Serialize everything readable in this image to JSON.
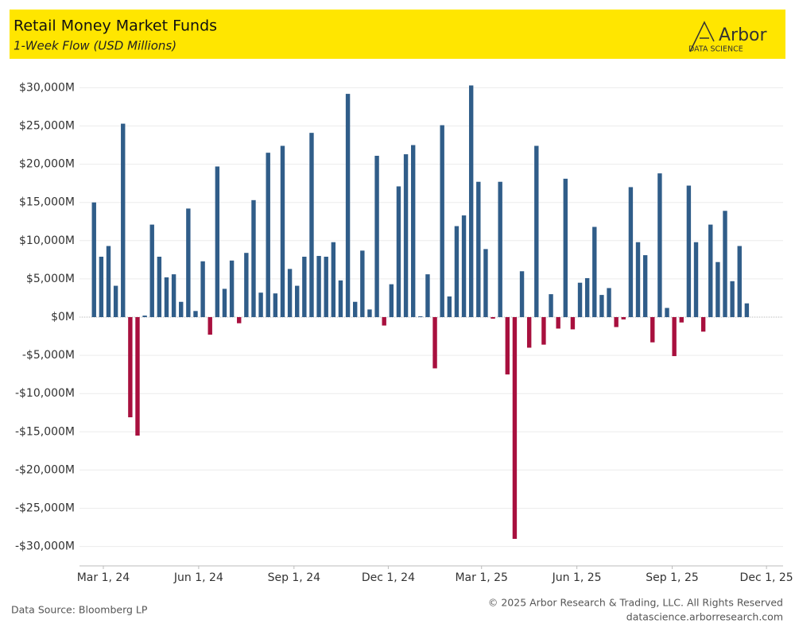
{
  "chart_data": {
    "type": "bar",
    "title": "Retail Money Market Funds",
    "subtitle": "1-Week Flow (USD Millions)",
    "logo": "Arbor",
    "logo_sub": "DATA SCIENCE",
    "source": "Data Source: Bloomberg LP",
    "copyright": "© 2025 Arbor Research & Trading, LLC. All Rights Reserved",
    "website": "datascience.arborresearch.com",
    "positive_color": "#305d89",
    "negative_color": "#a8103e",
    "grid": true,
    "x": [
      "2024-02-21",
      "2024-02-28",
      "2024-03-06",
      "2024-03-13",
      "2024-03-20",
      "2024-03-27",
      "2024-04-03",
      "2024-04-10",
      "2024-04-17",
      "2024-04-24",
      "2024-05-01",
      "2024-05-08",
      "2024-05-15",
      "2024-05-22",
      "2024-05-29",
      "2024-06-05",
      "2024-06-12",
      "2024-06-19",
      "2024-06-26",
      "2024-07-03",
      "2024-07-10",
      "2024-07-17",
      "2024-07-24",
      "2024-07-31",
      "2024-08-07",
      "2024-08-14",
      "2024-08-21",
      "2024-08-28",
      "2024-09-04",
      "2024-09-11",
      "2024-09-18",
      "2024-09-25",
      "2024-10-02",
      "2024-10-09",
      "2024-10-16",
      "2024-10-23",
      "2024-10-30",
      "2024-11-06",
      "2024-11-13",
      "2024-11-20",
      "2024-11-27",
      "2024-12-04",
      "2024-12-11",
      "2024-12-18",
      "2024-12-25",
      "2025-01-01",
      "2025-01-08",
      "2025-01-15",
      "2025-01-22",
      "2025-01-29",
      "2025-02-05",
      "2025-02-12",
      "2025-02-19",
      "2025-02-26",
      "2025-03-05",
      "2025-03-12",
      "2025-03-19",
      "2025-03-26",
      "2025-04-02",
      "2025-04-09",
      "2025-04-16",
      "2025-04-23",
      "2025-04-30",
      "2025-05-07",
      "2025-05-14",
      "2025-05-21",
      "2025-05-28",
      "2025-06-04",
      "2025-06-11",
      "2025-06-18",
      "2025-06-25",
      "2025-07-02",
      "2025-07-09",
      "2025-07-16",
      "2025-07-23",
      "2025-07-30",
      "2025-08-06",
      "2025-08-13",
      "2025-08-20",
      "2025-08-27",
      "2025-09-03",
      "2025-09-10",
      "2025-09-17",
      "2025-09-24",
      "2025-10-01",
      "2025-10-08",
      "2025-10-15",
      "2025-10-22",
      "2025-10-29",
      "2025-11-05",
      "2025-11-12"
    ],
    "values": [
      15000,
      7900,
      9300,
      4100,
      25300,
      -13100,
      -15500,
      200,
      12100,
      7900,
      5200,
      5600,
      2000,
      14200,
      800,
      7300,
      -2300,
      19700,
      3700,
      7400,
      -800,
      8400,
      15300,
      3200,
      21500,
      3100,
      22400,
      6300,
      4100,
      7900,
      24100,
      8000,
      7900,
      9800,
      4800,
      29200,
      2000,
      8700,
      1000,
      21100,
      -1100,
      4300,
      17100,
      21300,
      22500,
      100,
      5600,
      -6700,
      25100,
      2700,
      11900,
      13300,
      30300,
      17700,
      8900,
      -200,
      17700,
      -7500,
      -29000,
      6000,
      -4000,
      22400,
      -3600,
      3000,
      -1500,
      18100,
      -1600,
      4500,
      5100,
      11800,
      2900,
      3800,
      -1300,
      -300,
      17000,
      9800,
      8100,
      -3300,
      18800,
      1200,
      -5100,
      -700,
      17200,
      9800,
      -1900,
      12100,
      7200,
      13900,
      4700,
      9300,
      1800
    ],
    "xlim": [
      "2024-02-07",
      "2025-12-17"
    ],
    "xticks": [
      {
        "value": "2024-03-01",
        "label": "Mar 1, 24"
      },
      {
        "value": "2024-06-01",
        "label": "Jun 1, 24"
      },
      {
        "value": "2024-09-01",
        "label": "Sep 1, 24"
      },
      {
        "value": "2024-12-01",
        "label": "Dec 1, 24"
      },
      {
        "value": "2025-03-01",
        "label": "Mar 1, 25"
      },
      {
        "value": "2025-06-01",
        "label": "Jun 1, 25"
      },
      {
        "value": "2025-09-01",
        "label": "Sep 1, 25"
      },
      {
        "value": "2025-12-01",
        "label": "Dec 1, 25"
      }
    ],
    "ylim": [
      -31600,
      31600
    ],
    "yticks": [
      {
        "value": 30000,
        "label": "$30,000M"
      },
      {
        "value": 25000,
        "label": "$25,000M"
      },
      {
        "value": 20000,
        "label": "$20,000M"
      },
      {
        "value": 15000,
        "label": "$15,000M"
      },
      {
        "value": 10000,
        "label": "$10,000M"
      },
      {
        "value": 5000,
        "label": "$5,000M"
      },
      {
        "value": 0,
        "label": "$0M"
      },
      {
        "value": -5000,
        "label": "-$5,000M"
      },
      {
        "value": -10000,
        "label": "-$10,000M"
      },
      {
        "value": -15000,
        "label": "-$15,000M"
      },
      {
        "value": -20000,
        "label": "-$20,000M"
      },
      {
        "value": -25000,
        "label": "-$25,000M"
      },
      {
        "value": -30000,
        "label": "-$30,000M"
      }
    ]
  }
}
